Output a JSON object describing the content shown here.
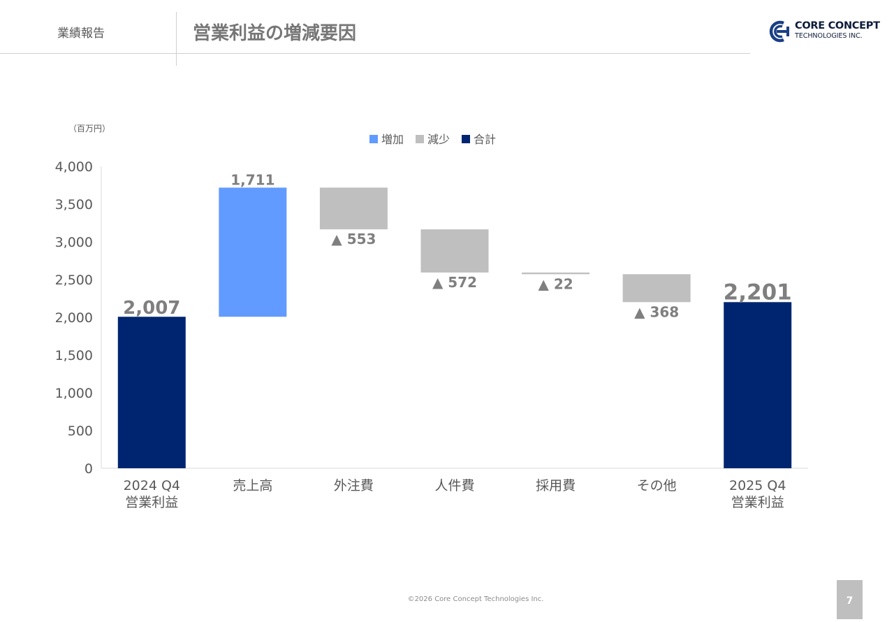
{
  "header": {
    "section": "業績報告",
    "title": "営業利益の増減要因"
  },
  "logo": {
    "line1": "CORE CONCEPT",
    "line2": "TECHNOLOGIES INC."
  },
  "chart_data": {
    "type": "waterfall",
    "unit_label": "（百万円）",
    "ylim": [
      0,
      4000
    ],
    "yticks": [
      0,
      500,
      1000,
      1500,
      2000,
      2500,
      3000,
      3500,
      4000
    ],
    "ytick_labels": [
      "0",
      "500",
      "1,000",
      "1,500",
      "2,000",
      "2,500",
      "3,000",
      "3,500",
      "4,000"
    ],
    "legend": {
      "position": "top-center",
      "items": [
        {
          "label": "増加",
          "color": "#619bff"
        },
        {
          "label": "減少",
          "color": "#bfbfbf"
        },
        {
          "label": "合計",
          "color": "#002570"
        }
      ]
    },
    "categories": [
      [
        "2024 Q4",
        "営業利益"
      ],
      [
        "売上高"
      ],
      [
        "外注費"
      ],
      [
        "人件費"
      ],
      [
        "採用費"
      ],
      [
        "その他"
      ],
      [
        "2025 Q4",
        "営業利益"
      ]
    ],
    "bars": [
      {
        "kind": "total",
        "start": 0,
        "end": 2007,
        "label": "2,007"
      },
      {
        "kind": "increase",
        "start": 2007,
        "end": 3718,
        "label": "1,711"
      },
      {
        "kind": "decrease",
        "start": 3718,
        "end": 3165,
        "label": "▲ 553"
      },
      {
        "kind": "decrease",
        "start": 3165,
        "end": 2593,
        "label": "▲ 572"
      },
      {
        "kind": "decrease",
        "start": 2593,
        "end": 2571,
        "label": "▲ 22"
      },
      {
        "kind": "decrease",
        "start": 2571,
        "end": 2201,
        "label": "▲ 368"
      },
      {
        "kind": "total",
        "start": 0,
        "end": 2201,
        "label": "2,201"
      }
    ],
    "colors": {
      "increase": "#619bff",
      "decrease": "#bfbfbf",
      "total": "#002570",
      "axis_text": "#595959",
      "value_text": "#7f7f7f"
    }
  },
  "footer": {
    "copyright": "©2026 Core Concept Technologies Inc.",
    "page": "7"
  }
}
